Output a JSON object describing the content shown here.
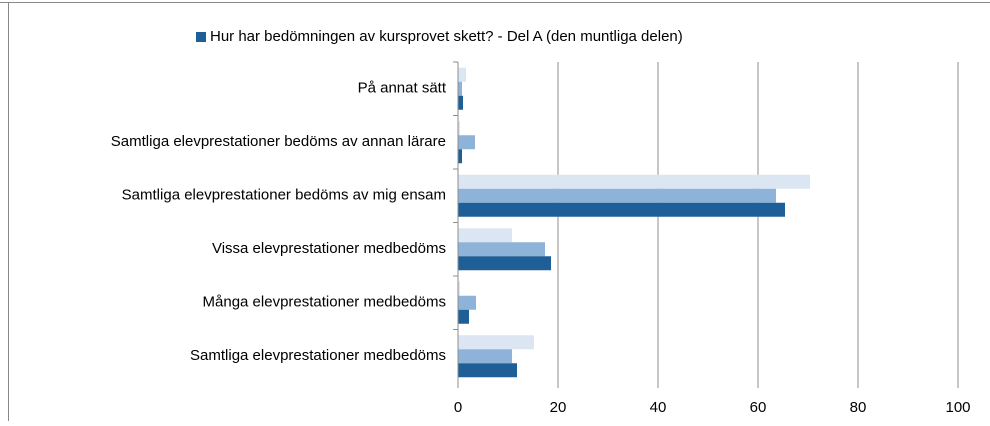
{
  "chart_data": {
    "type": "hbar",
    "categories": [
      "På annat sätt",
      "Samtliga elevprestationer bedöms av annan lärare",
      "Samtliga elevprestationer bedöms av mig ensam",
      "Vissa elevprestationer medbedöms",
      "Många elevprestationer medbedöms",
      "Samtliga elevprestationer medbedöms"
    ],
    "series": [
      {
        "color": "#dce6f2",
        "values": [
          1.6,
          0.4,
          70.4,
          10.8,
          0.4,
          15.2
        ]
      },
      {
        "color": "#8db3d9",
        "values": [
          0.8,
          3.4,
          63.6,
          17.4,
          3.6,
          10.8
        ]
      },
      {
        "name": "Hur har bedömningen av kursprovet skett? - Del A (den muntliga delen)",
        "color": "#1f5f97",
        "values": [
          1.0,
          0.8,
          65.4,
          18.6,
          2.2,
          11.8
        ]
      }
    ],
    "xlim": [
      0,
      100
    ],
    "xticks": [
      0,
      20,
      40,
      60,
      80,
      100
    ],
    "grid": true,
    "legend": "top"
  }
}
